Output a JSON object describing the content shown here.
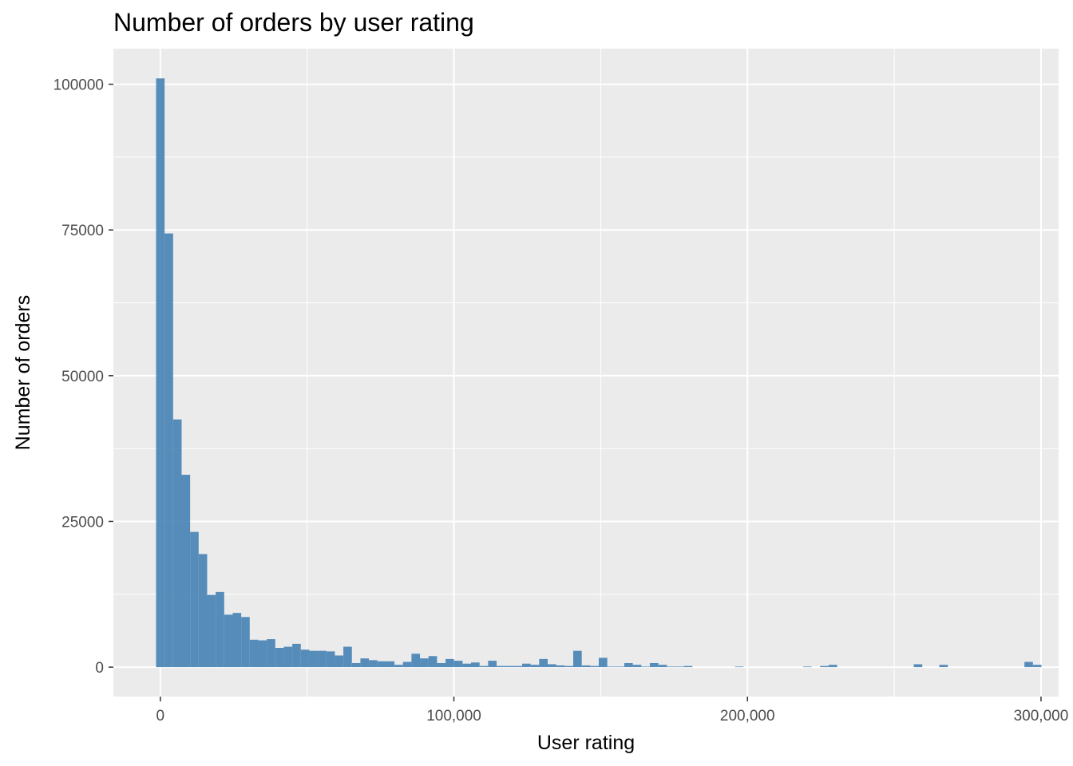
{
  "chart_data": {
    "type": "bar",
    "title": "Number of orders by user rating",
    "xlabel": "User rating",
    "ylabel": "Number of orders",
    "xlim": [
      -16000,
      306000
    ],
    "ylim": [
      -5050,
      106100
    ],
    "x_ticks": [
      0,
      100000,
      200000,
      300000
    ],
    "x_tick_labels": [
      "0",
      "100,000",
      "200,000",
      "300,000"
    ],
    "y_ticks": [
      0,
      25000,
      50000,
      75000,
      100000
    ],
    "y_tick_labels": [
      "0",
      "25000",
      "50000",
      "75000",
      "100000"
    ],
    "grid": true,
    "legend": "none",
    "panel_color": "#EBEBEB",
    "grid_color": "#FFFFFF",
    "bar_color": "#4682B4",
    "bin_width": 2900,
    "bin_start": -1450,
    "counts": [
      101000,
      74400,
      42500,
      33000,
      23200,
      19400,
      12400,
      12900,
      9000,
      9300,
      8600,
      4700,
      4600,
      4800,
      3300,
      3500,
      4000,
      3000,
      2800,
      2800,
      2700,
      2000,
      3500,
      700,
      1500,
      1200,
      1000,
      1000,
      400,
      900,
      2300,
      1500,
      1900,
      700,
      1400,
      1100,
      600,
      800,
      200,
      1100,
      200,
      200,
      200,
      600,
      400,
      1400,
      500,
      300,
      200,
      2800,
      300,
      200,
      1600,
      100,
      100,
      700,
      400,
      100,
      700,
      400,
      100,
      100,
      200,
      0,
      0,
      0,
      0,
      0,
      100,
      0,
      0,
      0,
      0,
      0,
      0,
      0,
      100,
      0,
      200,
      400,
      0,
      0,
      0,
      0,
      0,
      0,
      0,
      0,
      0,
      500,
      0,
      0,
      400,
      0,
      0,
      0,
      0,
      0,
      0,
      0,
      0,
      0,
      900,
      400
    ]
  }
}
